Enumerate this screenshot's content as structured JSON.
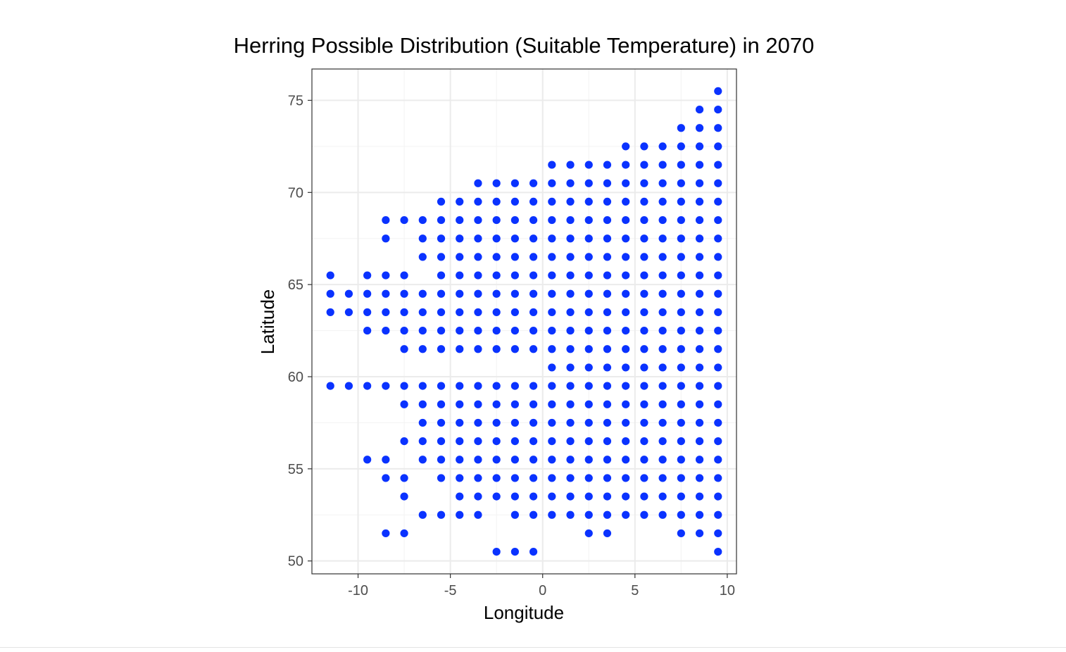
{
  "chart_data": {
    "type": "scatter",
    "title": "Herring Possible Distribution (Suitable Temperature) in 2070",
    "xlabel": "Longitude",
    "ylabel": "Latitude",
    "xlim": [
      -12.5,
      10.5
    ],
    "ylim": [
      49.3,
      76.7
    ],
    "x_ticks": [
      -10,
      -5,
      0,
      5,
      10
    ],
    "x_tick_labels": [
      "-10",
      "-5",
      "0",
      "5",
      "10"
    ],
    "y_ticks": [
      50,
      55,
      60,
      65,
      70,
      75
    ],
    "y_tick_labels": [
      "50",
      "55",
      "60",
      "65",
      "70",
      "75"
    ],
    "grid": true,
    "theme": "bw",
    "point_color": "#0a32ff",
    "rows": [
      {
        "lat": 75.5,
        "lons": [
          9.5
        ]
      },
      {
        "lat": 74.5,
        "lons": [
          8.5,
          9.5
        ]
      },
      {
        "lat": 73.5,
        "lons": [
          7.5,
          8.5,
          9.5
        ]
      },
      {
        "lat": 72.5,
        "lons": [
          4.5,
          5.5,
          6.5,
          7.5,
          8.5,
          9.5
        ]
      },
      {
        "lat": 71.5,
        "lons": [
          0.5,
          1.5,
          2.5,
          3.5,
          4.5,
          5.5,
          6.5,
          7.5,
          8.5,
          9.5
        ]
      },
      {
        "lat": 70.5,
        "lons": [
          -3.5,
          -2.5,
          -1.5,
          -0.5,
          0.5,
          1.5,
          2.5,
          3.5,
          4.5,
          5.5,
          6.5,
          7.5,
          8.5,
          9.5
        ]
      },
      {
        "lat": 69.5,
        "lons": [
          -5.5,
          -4.5,
          -3.5,
          -2.5,
          -1.5,
          -0.5,
          0.5,
          1.5,
          2.5,
          3.5,
          4.5,
          5.5,
          6.5,
          7.5,
          8.5,
          9.5
        ]
      },
      {
        "lat": 68.5,
        "lons": [
          -8.5,
          -7.5,
          -6.5,
          -5.5,
          -4.5,
          -3.5,
          -2.5,
          -1.5,
          -0.5,
          0.5,
          1.5,
          2.5,
          3.5,
          4.5,
          5.5,
          6.5,
          7.5,
          8.5,
          9.5
        ]
      },
      {
        "lat": 67.5,
        "lons": [
          -8.5,
          -6.5,
          -5.5,
          -4.5,
          -3.5,
          -2.5,
          -1.5,
          -0.5,
          0.5,
          1.5,
          2.5,
          3.5,
          4.5,
          5.5,
          6.5,
          7.5,
          8.5,
          9.5
        ]
      },
      {
        "lat": 66.5,
        "lons": [
          -6.5,
          -5.5,
          -4.5,
          -3.5,
          -2.5,
          -1.5,
          -0.5,
          0.5,
          1.5,
          2.5,
          3.5,
          4.5,
          5.5,
          6.5,
          7.5,
          8.5,
          9.5
        ]
      },
      {
        "lat": 65.5,
        "lons": [
          -11.5,
          -9.5,
          -8.5,
          -7.5,
          -5.5,
          -4.5,
          -3.5,
          -2.5,
          -1.5,
          -0.5,
          0.5,
          1.5,
          2.5,
          3.5,
          4.5,
          5.5,
          6.5,
          7.5,
          8.5,
          9.5
        ]
      },
      {
        "lat": 64.5,
        "lons": [
          -11.5,
          -10.5,
          -9.5,
          -8.5,
          -7.5,
          -6.5,
          -5.5,
          -4.5,
          -3.5,
          -2.5,
          -1.5,
          -0.5,
          0.5,
          1.5,
          2.5,
          3.5,
          4.5,
          5.5,
          6.5,
          7.5,
          8.5,
          9.5
        ]
      },
      {
        "lat": 63.5,
        "lons": [
          -11.5,
          -10.5,
          -9.5,
          -8.5,
          -7.5,
          -6.5,
          -5.5,
          -4.5,
          -3.5,
          -2.5,
          -1.5,
          -0.5,
          0.5,
          1.5,
          2.5,
          3.5,
          4.5,
          5.5,
          6.5,
          7.5,
          8.5,
          9.5
        ]
      },
      {
        "lat": 62.5,
        "lons": [
          -9.5,
          -8.5,
          -7.5,
          -6.5,
          -5.5,
          -4.5,
          -3.5,
          -2.5,
          -1.5,
          -0.5,
          0.5,
          1.5,
          2.5,
          3.5,
          4.5,
          5.5,
          6.5,
          7.5,
          8.5,
          9.5
        ]
      },
      {
        "lat": 61.5,
        "lons": [
          -7.5,
          -6.5,
          -5.5,
          -4.5,
          -3.5,
          -2.5,
          -1.5,
          -0.5,
          0.5,
          1.5,
          2.5,
          3.5,
          4.5,
          5.5,
          6.5,
          7.5,
          8.5,
          9.5
        ]
      },
      {
        "lat": 60.5,
        "lons": [
          0.5,
          1.5,
          2.5,
          3.5,
          4.5,
          5.5,
          6.5,
          7.5,
          8.5,
          9.5
        ]
      },
      {
        "lat": 59.5,
        "lons": [
          -11.5,
          -10.5,
          -9.5,
          -8.5,
          -7.5,
          -6.5,
          -5.5,
          -4.5,
          -3.5,
          -2.5,
          -1.5,
          -0.5,
          0.5,
          1.5,
          2.5,
          3.5,
          4.5,
          5.5,
          6.5,
          7.5,
          8.5,
          9.5
        ]
      },
      {
        "lat": 58.5,
        "lons": [
          -7.5,
          -6.5,
          -5.5,
          -4.5,
          -3.5,
          -2.5,
          -1.5,
          -0.5,
          0.5,
          1.5,
          2.5,
          3.5,
          4.5,
          5.5,
          6.5,
          7.5,
          8.5,
          9.5
        ]
      },
      {
        "lat": 57.5,
        "lons": [
          -6.5,
          -5.5,
          -4.5,
          -3.5,
          -2.5,
          -1.5,
          -0.5,
          0.5,
          1.5,
          2.5,
          3.5,
          4.5,
          5.5,
          6.5,
          7.5,
          8.5,
          9.5
        ]
      },
      {
        "lat": 56.5,
        "lons": [
          -7.5,
          -6.5,
          -5.5,
          -4.5,
          -3.5,
          -2.5,
          -1.5,
          -0.5,
          0.5,
          1.5,
          2.5,
          3.5,
          4.5,
          5.5,
          6.5,
          7.5,
          8.5,
          9.5
        ]
      },
      {
        "lat": 55.5,
        "lons": [
          -9.5,
          -8.5,
          -6.5,
          -5.5,
          -4.5,
          -3.5,
          -2.5,
          -1.5,
          -0.5,
          0.5,
          1.5,
          2.5,
          3.5,
          4.5,
          5.5,
          6.5,
          7.5,
          8.5,
          9.5
        ]
      },
      {
        "lat": 54.5,
        "lons": [
          -8.5,
          -7.5,
          -5.5,
          -4.5,
          -3.5,
          -2.5,
          -1.5,
          -0.5,
          0.5,
          1.5,
          2.5,
          3.5,
          4.5,
          5.5,
          6.5,
          7.5,
          8.5,
          9.5
        ]
      },
      {
        "lat": 53.5,
        "lons": [
          -7.5,
          -4.5,
          -3.5,
          -2.5,
          -1.5,
          -0.5,
          0.5,
          1.5,
          2.5,
          3.5,
          4.5,
          5.5,
          6.5,
          7.5,
          8.5,
          9.5
        ]
      },
      {
        "lat": 52.5,
        "lons": [
          -6.5,
          -5.5,
          -4.5,
          -3.5,
          -1.5,
          -0.5,
          0.5,
          1.5,
          2.5,
          3.5,
          4.5,
          5.5,
          6.5,
          7.5,
          8.5,
          9.5
        ]
      },
      {
        "lat": 51.5,
        "lons": [
          -8.5,
          -7.5,
          2.5,
          3.5,
          7.5,
          8.5,
          9.5
        ]
      },
      {
        "lat": 50.5,
        "lons": [
          -2.5,
          -1.5,
          -0.5,
          9.5
        ]
      }
    ]
  }
}
